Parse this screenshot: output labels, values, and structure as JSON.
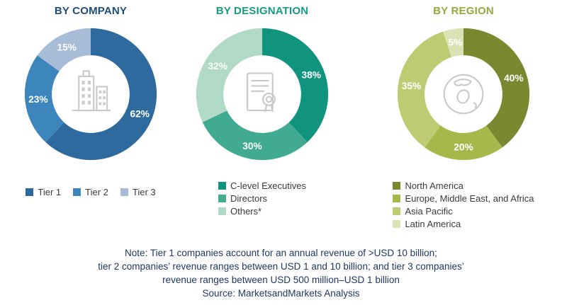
{
  "chart_data": [
    {
      "type": "pie",
      "title": "BY COMPANY",
      "title_color": "#1c4e79",
      "icon": "building-icon",
      "legend_layout": "horizontal",
      "legend_position": "bottom",
      "segments": [
        {
          "label": "Tier 1",
          "value": 62,
          "color": "#2e6a9e"
        },
        {
          "label": "Tier 2",
          "value": 23,
          "color": "#3d85bd"
        },
        {
          "label": "Tier 3",
          "value": 15,
          "color": "#a7bcd6"
        }
      ]
    },
    {
      "type": "pie",
      "title": "BY DESIGNATION",
      "title_color": "#169a82",
      "icon": "certificate-icon",
      "legend_layout": "vertical",
      "legend_position": "bottom",
      "segments": [
        {
          "label": "C-level Executives",
          "value": 38,
          "color": "#10947e"
        },
        {
          "label": "Directors",
          "value": 30,
          "color": "#41ab92"
        },
        {
          "label": "Others*",
          "value": 32,
          "color": "#b0d9c6"
        }
      ]
    },
    {
      "type": "pie",
      "title": "BY REGION",
      "title_color": "#93a83d",
      "icon": "globe-icon",
      "legend_layout": "vertical",
      "legend_position": "bottom",
      "segments": [
        {
          "label": "North America",
          "value": 40,
          "color": "#79892f"
        },
        {
          "label": "Europe, Middle East, and Africa",
          "value": 20,
          "color": "#a4b94a"
        },
        {
          "label": "Asia Pacific",
          "value": 35,
          "color": "#becb72"
        },
        {
          "label": "Latin America",
          "value": 5,
          "color": "#dbe3b4"
        }
      ]
    }
  ],
  "note": {
    "lines": [
      "Note: Tier 1 companies account for an annual revenue of >USD 10 billion;",
      "tier 2 companies’ revenue ranges between USD 1 and 10 billion; and tier 3 companies’",
      "revenue ranges between USD 500 million–USD 1 billion",
      "Source: MarketsandMarkets Analysis"
    ]
  }
}
